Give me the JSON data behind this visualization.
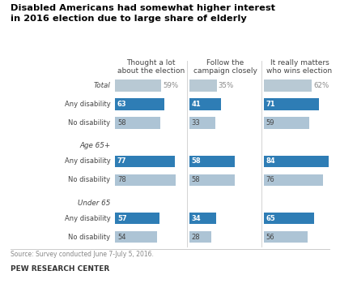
{
  "title": "Disabled Americans had somewhat higher interest\nin 2016 election due to large share of elderly",
  "col_headers": [
    "Thought a lot\nabout the election",
    "Follow the\ncampaign closely",
    "It really matters\nwho wins election"
  ],
  "data": [
    {
      "label": "Total",
      "type": "total",
      "values": [
        59,
        35,
        62
      ]
    },
    {
      "label": "Any disability",
      "type": "disability",
      "values": [
        63,
        41,
        71
      ]
    },
    {
      "label": "No disability",
      "type": "no_dis",
      "values": [
        58,
        33,
        59
      ]
    },
    {
      "label": "Age 65+",
      "type": "group",
      "values": [
        null,
        null,
        null
      ]
    },
    {
      "label": "Any disability",
      "type": "disability",
      "values": [
        77,
        58,
        84
      ]
    },
    {
      "label": "No disability",
      "type": "no_dis",
      "values": [
        78,
        58,
        76
      ]
    },
    {
      "label": "Under 65",
      "type": "group",
      "values": [
        null,
        null,
        null
      ]
    },
    {
      "label": "Any disability",
      "type": "disability",
      "values": [
        57,
        34,
        65
      ]
    },
    {
      "label": "No disability",
      "type": "no_dis",
      "values": [
        54,
        28,
        56
      ]
    }
  ],
  "color_total": "#b8c9d4",
  "color_disability": "#2e7db5",
  "color_no_dis": "#adc4d5",
  "source_text": "Source: Survey conducted June 7-July 5, 2016.",
  "footer_text": "PEW RESEARCH CENTER",
  "max_val": 84
}
